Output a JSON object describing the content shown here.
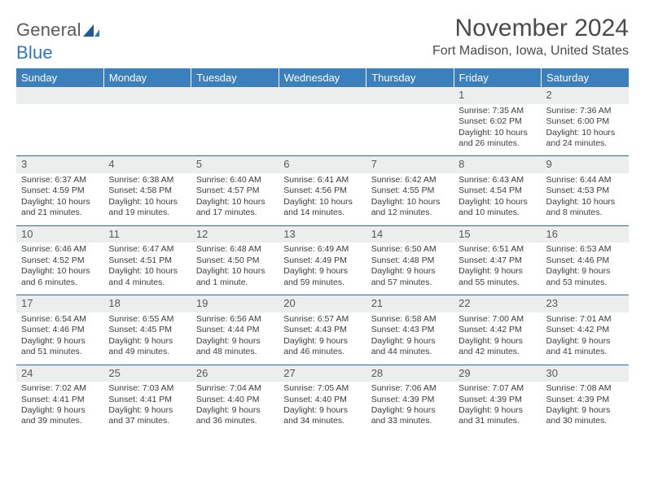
{
  "logo": {
    "text1": "General",
    "text2": "Blue"
  },
  "monthTitle": "November 2024",
  "location": "Fort Madison, Iowa, United States",
  "table": {
    "columns": [
      "Sunday",
      "Monday",
      "Tuesday",
      "Wednesday",
      "Thursday",
      "Friday",
      "Saturday"
    ],
    "header_bg": "#3b7fbd",
    "header_fg": "#ffffff",
    "daynum_bg": "#eceded",
    "rule_color": "#2f6ca6",
    "cell_font_size": 10.5,
    "rows": [
      [
        {
          "day": "",
          "sunrise": "",
          "sunset": "",
          "daylight": ""
        },
        {
          "day": "",
          "sunrise": "",
          "sunset": "",
          "daylight": ""
        },
        {
          "day": "",
          "sunrise": "",
          "sunset": "",
          "daylight": ""
        },
        {
          "day": "",
          "sunrise": "",
          "sunset": "",
          "daylight": ""
        },
        {
          "day": "",
          "sunrise": "",
          "sunset": "",
          "daylight": ""
        },
        {
          "day": "1",
          "sunrise": "Sunrise: 7:35 AM",
          "sunset": "Sunset: 6:02 PM",
          "daylight": "Daylight: 10 hours and 26 minutes."
        },
        {
          "day": "2",
          "sunrise": "Sunrise: 7:36 AM",
          "sunset": "Sunset: 6:00 PM",
          "daylight": "Daylight: 10 hours and 24 minutes."
        }
      ],
      [
        {
          "day": "3",
          "sunrise": "Sunrise: 6:37 AM",
          "sunset": "Sunset: 4:59 PM",
          "daylight": "Daylight: 10 hours and 21 minutes."
        },
        {
          "day": "4",
          "sunrise": "Sunrise: 6:38 AM",
          "sunset": "Sunset: 4:58 PM",
          "daylight": "Daylight: 10 hours and 19 minutes."
        },
        {
          "day": "5",
          "sunrise": "Sunrise: 6:40 AM",
          "sunset": "Sunset: 4:57 PM",
          "daylight": "Daylight: 10 hours and 17 minutes."
        },
        {
          "day": "6",
          "sunrise": "Sunrise: 6:41 AM",
          "sunset": "Sunset: 4:56 PM",
          "daylight": "Daylight: 10 hours and 14 minutes."
        },
        {
          "day": "7",
          "sunrise": "Sunrise: 6:42 AM",
          "sunset": "Sunset: 4:55 PM",
          "daylight": "Daylight: 10 hours and 12 minutes."
        },
        {
          "day": "8",
          "sunrise": "Sunrise: 6:43 AM",
          "sunset": "Sunset: 4:54 PM",
          "daylight": "Daylight: 10 hours and 10 minutes."
        },
        {
          "day": "9",
          "sunrise": "Sunrise: 6:44 AM",
          "sunset": "Sunset: 4:53 PM",
          "daylight": "Daylight: 10 hours and 8 minutes."
        }
      ],
      [
        {
          "day": "10",
          "sunrise": "Sunrise: 6:46 AM",
          "sunset": "Sunset: 4:52 PM",
          "daylight": "Daylight: 10 hours and 6 minutes."
        },
        {
          "day": "11",
          "sunrise": "Sunrise: 6:47 AM",
          "sunset": "Sunset: 4:51 PM",
          "daylight": "Daylight: 10 hours and 4 minutes."
        },
        {
          "day": "12",
          "sunrise": "Sunrise: 6:48 AM",
          "sunset": "Sunset: 4:50 PM",
          "daylight": "Daylight: 10 hours and 1 minute."
        },
        {
          "day": "13",
          "sunrise": "Sunrise: 6:49 AM",
          "sunset": "Sunset: 4:49 PM",
          "daylight": "Daylight: 9 hours and 59 minutes."
        },
        {
          "day": "14",
          "sunrise": "Sunrise: 6:50 AM",
          "sunset": "Sunset: 4:48 PM",
          "daylight": "Daylight: 9 hours and 57 minutes."
        },
        {
          "day": "15",
          "sunrise": "Sunrise: 6:51 AM",
          "sunset": "Sunset: 4:47 PM",
          "daylight": "Daylight: 9 hours and 55 minutes."
        },
        {
          "day": "16",
          "sunrise": "Sunrise: 6:53 AM",
          "sunset": "Sunset: 4:46 PM",
          "daylight": "Daylight: 9 hours and 53 minutes."
        }
      ],
      [
        {
          "day": "17",
          "sunrise": "Sunrise: 6:54 AM",
          "sunset": "Sunset: 4:46 PM",
          "daylight": "Daylight: 9 hours and 51 minutes."
        },
        {
          "day": "18",
          "sunrise": "Sunrise: 6:55 AM",
          "sunset": "Sunset: 4:45 PM",
          "daylight": "Daylight: 9 hours and 49 minutes."
        },
        {
          "day": "19",
          "sunrise": "Sunrise: 6:56 AM",
          "sunset": "Sunset: 4:44 PM",
          "daylight": "Daylight: 9 hours and 48 minutes."
        },
        {
          "day": "20",
          "sunrise": "Sunrise: 6:57 AM",
          "sunset": "Sunset: 4:43 PM",
          "daylight": "Daylight: 9 hours and 46 minutes."
        },
        {
          "day": "21",
          "sunrise": "Sunrise: 6:58 AM",
          "sunset": "Sunset: 4:43 PM",
          "daylight": "Daylight: 9 hours and 44 minutes."
        },
        {
          "day": "22",
          "sunrise": "Sunrise: 7:00 AM",
          "sunset": "Sunset: 4:42 PM",
          "daylight": "Daylight: 9 hours and 42 minutes."
        },
        {
          "day": "23",
          "sunrise": "Sunrise: 7:01 AM",
          "sunset": "Sunset: 4:42 PM",
          "daylight": "Daylight: 9 hours and 41 minutes."
        }
      ],
      [
        {
          "day": "24",
          "sunrise": "Sunrise: 7:02 AM",
          "sunset": "Sunset: 4:41 PM",
          "daylight": "Daylight: 9 hours and 39 minutes."
        },
        {
          "day": "25",
          "sunrise": "Sunrise: 7:03 AM",
          "sunset": "Sunset: 4:41 PM",
          "daylight": "Daylight: 9 hours and 37 minutes."
        },
        {
          "day": "26",
          "sunrise": "Sunrise: 7:04 AM",
          "sunset": "Sunset: 4:40 PM",
          "daylight": "Daylight: 9 hours and 36 minutes."
        },
        {
          "day": "27",
          "sunrise": "Sunrise: 7:05 AM",
          "sunset": "Sunset: 4:40 PM",
          "daylight": "Daylight: 9 hours and 34 minutes."
        },
        {
          "day": "28",
          "sunrise": "Sunrise: 7:06 AM",
          "sunset": "Sunset: 4:39 PM",
          "daylight": "Daylight: 9 hours and 33 minutes."
        },
        {
          "day": "29",
          "sunrise": "Sunrise: 7:07 AM",
          "sunset": "Sunset: 4:39 PM",
          "daylight": "Daylight: 9 hours and 31 minutes."
        },
        {
          "day": "30",
          "sunrise": "Sunrise: 7:08 AM",
          "sunset": "Sunset: 4:39 PM",
          "daylight": "Daylight: 9 hours and 30 minutes."
        }
      ]
    ]
  }
}
